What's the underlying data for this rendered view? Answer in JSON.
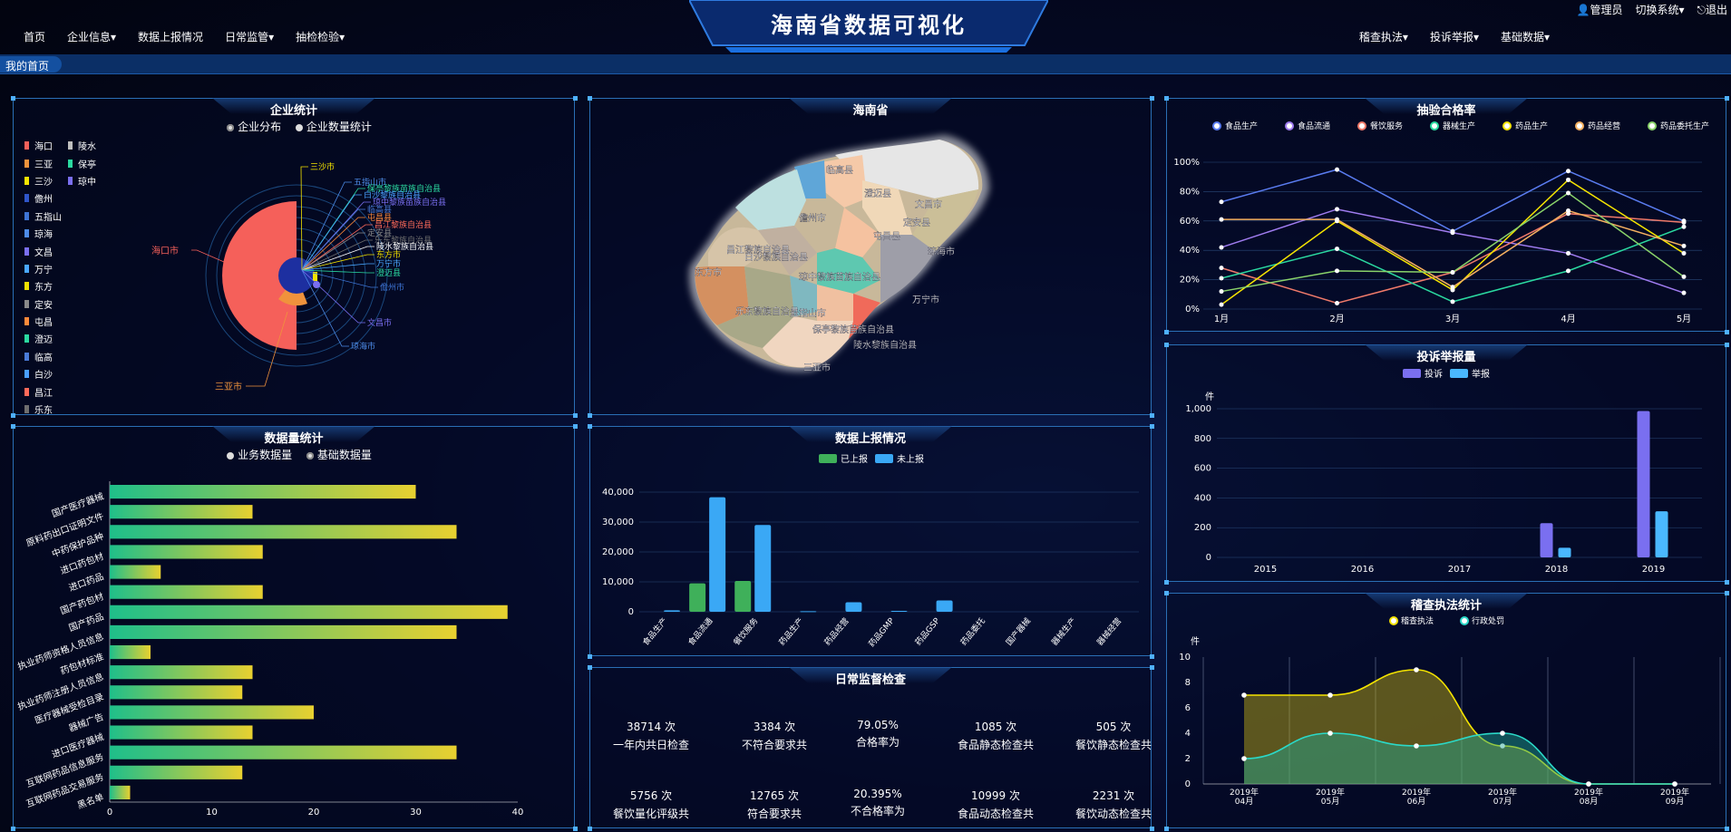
{
  "header": {
    "title": "海南省数据可视化",
    "nav_left": [
      "首页",
      "企业信息▾",
      "数据上报情况",
      "日常监管▾",
      "抽检检验▾"
    ],
    "nav_right": [
      "稽查执法▾",
      "投诉举报▾",
      "基础数据▾"
    ],
    "user": "管理员",
    "switch_system": "切换系统▾",
    "logout": "退出"
  },
  "breadcrumb": "我的首页",
  "colors": {
    "accent": "#2a6fb5",
    "pie_main": "#f5605a"
  },
  "enterprise_stats": {
    "title": "企业统计",
    "radio": [
      "企业分布",
      "企业数量统计"
    ],
    "legend": [
      {
        "name": "海口",
        "color": "#f5605a"
      },
      {
        "name": "三亚",
        "color": "#f0923c"
      },
      {
        "name": "三沙",
        "color": "#f5e400"
      },
      {
        "name": "儋州",
        "color": "#2f55c8"
      },
      {
        "name": "五指山",
        "color": "#3e74d4"
      },
      {
        "name": "琼海",
        "color": "#4e8ce8"
      },
      {
        "name": "文昌",
        "color": "#7a6ff0"
      },
      {
        "name": "万宁",
        "color": "#4aa8ff"
      },
      {
        "name": "东方",
        "color": "#f0e000"
      },
      {
        "name": "定安",
        "color": "#8a8a8a"
      },
      {
        "name": "屯昌",
        "color": "#ff8a3a"
      },
      {
        "name": "澄迈",
        "color": "#2bd9a0"
      },
      {
        "name": "临高",
        "color": "#4a7bd8"
      },
      {
        "name": "白沙",
        "color": "#4aa0ff"
      },
      {
        "name": "昌江",
        "color": "#ff6a5a"
      },
      {
        "name": "乐东",
        "color": "#6e6e6e"
      }
    ],
    "legend2": [
      {
        "name": "陵水",
        "color": "#bfbfbf"
      },
      {
        "name": "保亭",
        "color": "#2bd9a0"
      },
      {
        "name": "琼中",
        "color": "#7a6ff0"
      }
    ],
    "pie_labels": [
      {
        "name": "三沙市",
        "color": "#f5e400"
      },
      {
        "name": "五指山市",
        "color": "#4e8ce8"
      },
      {
        "name": "保亭黎族苗族自治县",
        "color": "#2bd9a0"
      },
      {
        "name": "白沙黎族自治县",
        "color": "#4aa0ff"
      },
      {
        "name": "琼中黎族苗族自治县",
        "color": "#7a6ff0"
      },
      {
        "name": "临高县",
        "color": "#4a7bd8"
      },
      {
        "name": "屯昌县",
        "color": "#ff8a3a"
      },
      {
        "name": "昌江黎族自治县",
        "color": "#ff6a5a"
      },
      {
        "name": "定安县",
        "color": "#8a8a8a"
      },
      {
        "name": "乐东黎族自治县",
        "color": "#6e6e6e"
      },
      {
        "name": "陵水黎族自治县",
        "color": "#ffffff"
      },
      {
        "name": "东方市",
        "color": "#f0e000"
      },
      {
        "name": "万宁市",
        "color": "#4aa8ff"
      },
      {
        "name": "澄迈县",
        "color": "#2bd9a0"
      },
      {
        "name": "儋州市",
        "color": "#3e74d4"
      },
      {
        "name": "文昌市",
        "color": "#7a6ff0"
      },
      {
        "name": "琼海市",
        "color": "#4e8ce8"
      },
      {
        "name": "三亚市",
        "color": "#f0923c"
      },
      {
        "name": "海口市",
        "color": "#f5605a"
      }
    ]
  },
  "map_panel": {
    "title": "海南省",
    "regions": [
      "临高县",
      "澄迈县",
      "儋州市",
      "屯昌县",
      "琼海市",
      "定安县",
      "文昌市",
      "昌江黎族自治县",
      "白沙黎族自治县",
      "东方市",
      "琼中黎族苗族自治县",
      "万宁市",
      "五指山市",
      "乐东黎族自治县",
      "保亭黎族苗族自治县",
      "陵水黎族自治县",
      "三亚市"
    ]
  },
  "pass_rate": {
    "title": "抽验合格率",
    "chart_data": {
      "type": "line",
      "x": [
        "1月",
        "2月",
        "3月",
        "4月",
        "5月"
      ],
      "ylim": [
        0,
        100
      ],
      "yticks": [
        "0%",
        "20%",
        "40%",
        "60%",
        "80%",
        "100%"
      ],
      "series": [
        {
          "name": "食品生产",
          "color": "#5a7cf0",
          "values": [
            73,
            95,
            53,
            94,
            60
          ]
        },
        {
          "name": "食品流通",
          "color": "#a07cf0",
          "values": [
            42,
            68,
            52,
            38,
            11
          ]
        },
        {
          "name": "餐饮服务",
          "color": "#f07a6a",
          "values": [
            28,
            4,
            25,
            65,
            59
          ]
        },
        {
          "name": "器械生产",
          "color": "#2bd9a0",
          "values": [
            21,
            41,
            5,
            26,
            56
          ]
        },
        {
          "name": "药品生产",
          "color": "#f5e400",
          "values": [
            3,
            60,
            13,
            88,
            38
          ]
        },
        {
          "name": "药品经营",
          "color": "#f5b060",
          "values": [
            61,
            61,
            15,
            67,
            43
          ]
        },
        {
          "name": "药品委托生产",
          "color": "#8ad36a",
          "values": [
            12,
            26,
            25,
            79,
            22
          ]
        }
      ]
    }
  },
  "complaint": {
    "title": "投诉举报量",
    "chart_data": {
      "type": "bar",
      "categories": [
        "2015",
        "2016",
        "2017",
        "2018",
        "2019"
      ],
      "ylabel": "件",
      "ylim": [
        0,
        1000
      ],
      "yticks": [
        "0",
        "200",
        "400",
        "600",
        "800",
        "1,000"
      ],
      "series": [
        {
          "name": "投诉",
          "color": "#7a6ff0",
          "values": [
            0,
            0,
            0,
            230,
            985
          ]
        },
        {
          "name": "举报",
          "color": "#4ab8ff",
          "values": [
            0,
            0,
            0,
            65,
            310
          ]
        }
      ]
    }
  },
  "enforcement": {
    "title": "稽查执法统计",
    "chart_data": {
      "type": "area",
      "x": [
        "2019年04月",
        "2019年05月",
        "2019年06月",
        "2019年07月",
        "2019年08月",
        "2019年09月"
      ],
      "ylabel": "件",
      "ylim": [
        0,
        10
      ],
      "yticks": [
        "0",
        "2",
        "4",
        "6",
        "8",
        "10"
      ],
      "series": [
        {
          "name": "稽查执法",
          "color": "#f5e400",
          "values": [
            7,
            7,
            9,
            3,
            0,
            0
          ]
        },
        {
          "name": "行政处罚",
          "color": "#2bd9c8",
          "values": [
            2,
            4,
            3,
            4,
            0,
            0
          ]
        }
      ]
    }
  },
  "data_volume": {
    "title": "数据量统计",
    "radio": [
      "业务数据量",
      "基础数据量"
    ],
    "chart_data": {
      "type": "bar",
      "categories": [
        "国产医疗器械",
        "原料药出口证明文件",
        "中药保护品种",
        "进口药包材",
        "进口药品",
        "国产药包材",
        "国产药品",
        "执业药师资格人员信息",
        "药包材标准",
        "执业药师注册人员信息",
        "医疗器械受检目录",
        "器械广告",
        "进口医疗器械",
        "互联网药品信息服务",
        "互联网药品交易服务",
        "黑名单"
      ],
      "values": [
        30,
        14,
        34,
        15,
        5,
        15,
        39,
        34,
        4,
        14,
        13,
        20,
        14,
        34,
        13,
        2
      ],
      "xlim": [
        0,
        40
      ],
      "xticks": [
        "0",
        "10",
        "20",
        "30",
        "40"
      ]
    }
  },
  "report_status": {
    "title": "数据上报情况",
    "chart_data": {
      "type": "bar",
      "categories": [
        "食品生产",
        "食品流通",
        "餐饮服务",
        "药品生产",
        "药品经营",
        "药品GMP",
        "药品GSP",
        "药品委托",
        "国产器械",
        "器械生产",
        "器械经营"
      ],
      "ylim": [
        0,
        40000
      ],
      "yticks": [
        "0",
        "10,000",
        "20,000",
        "30,000",
        "40,000"
      ],
      "series": [
        {
          "name": "已上报",
          "color": "#3fb05a",
          "values": [
            0,
            9500,
            10300,
            0,
            0,
            0,
            0,
            0,
            0,
            0,
            0
          ]
        },
        {
          "name": "未上报",
          "color": "#3aa8f5",
          "values": [
            500,
            38300,
            29000,
            200,
            3200,
            300,
            3800,
            0,
            0,
            0,
            0
          ]
        }
      ]
    }
  },
  "daily_inspection": {
    "title": "日常监督检查",
    "stats": [
      {
        "value": "38714 次",
        "label": "一年内共日检查"
      },
      {
        "value": "3384 次",
        "label": "不符合要求共"
      },
      {
        "value": "79.05%",
        "label": "合格率为"
      },
      {
        "value": "1085 次",
        "label": "食品静态检查共"
      },
      {
        "value": "505 次",
        "label": "餐饮静态检查共"
      },
      {
        "value": "5756 次",
        "label": "餐饮量化评级共"
      },
      {
        "value": "12765 次",
        "label": "符合要求共"
      },
      {
        "value": "20.395%",
        "label": "不合格率为"
      },
      {
        "value": "10999 次",
        "label": "食品动态检查共"
      },
      {
        "value": "2231 次",
        "label": "餐饮动态检查共"
      }
    ]
  }
}
